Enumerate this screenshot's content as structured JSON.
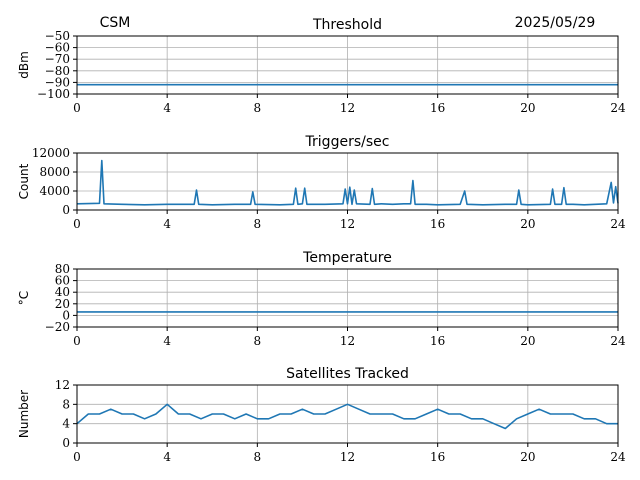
{
  "header": {
    "station": "CSM",
    "date": "2025/05/29"
  },
  "chart_data": [
    {
      "type": "line",
      "title": "Threshold",
      "ylabel": "dBm",
      "xlim": [
        0,
        24
      ],
      "ylim": [
        -100,
        -50
      ],
      "xticks": [
        "0",
        "4",
        "8",
        "12",
        "16",
        "20",
        "24"
      ],
      "yticks": [
        "−50",
        "−60",
        "−70",
        "−80",
        "−90",
        "−100"
      ],
      "grid": true,
      "color": "#1f77b4",
      "series": [
        {
          "x": [
            0,
            2,
            4,
            6,
            8,
            10,
            12,
            14,
            16,
            18,
            20,
            22,
            24
          ],
          "values": [
            -92,
            -92,
            -92,
            -92,
            -92,
            -92,
            -92,
            -92,
            -92,
            -92,
            -92,
            -92,
            -92
          ]
        }
      ]
    },
    {
      "type": "line",
      "title": "Triggers/sec",
      "ylabel": "Count",
      "xlim": [
        0,
        24
      ],
      "ylim": [
        0,
        12000
      ],
      "xticks": [
        "0",
        "4",
        "8",
        "12",
        "16",
        "20",
        "24"
      ],
      "yticks": [
        "12000",
        "8000",
        "4000",
        "0"
      ],
      "grid": true,
      "color": "#1f77b4",
      "series": [
        {
          "x": [
            0,
            1.0,
            1.1,
            1.2,
            2.0,
            3.0,
            4.0,
            5.2,
            5.3,
            5.4,
            6.0,
            7.0,
            7.7,
            7.8,
            7.9,
            9.0,
            9.6,
            9.7,
            9.8,
            10.0,
            10.1,
            10.2,
            11.0,
            11.8,
            11.9,
            12.0,
            12.1,
            12.2,
            12.3,
            12.4,
            13.0,
            13.1,
            13.2,
            13.5,
            14.0,
            14.5,
            14.8,
            14.9,
            15.0,
            15.5,
            16.0,
            17.0,
            17.2,
            17.3,
            18.0,
            19.0,
            19.5,
            19.6,
            19.7,
            20.0,
            21.0,
            21.1,
            21.2,
            21.5,
            21.6,
            21.7,
            22.0,
            22.5,
            23.0,
            23.5,
            23.7,
            23.8,
            23.9,
            24.0
          ],
          "values": [
            1300,
            1400,
            10400,
            1300,
            1200,
            1100,
            1200,
            1200,
            4200,
            1200,
            1100,
            1200,
            1200,
            3800,
            1200,
            1100,
            1200,
            4600,
            1200,
            1300,
            4600,
            1200,
            1200,
            1300,
            4400,
            1300,
            4800,
            1200,
            4200,
            1300,
            1200,
            4500,
            1200,
            1300,
            1200,
            1300,
            1300,
            6200,
            1200,
            1200,
            1100,
            1200,
            4000,
            1200,
            1100,
            1200,
            1200,
            4200,
            1200,
            1100,
            1200,
            4400,
            1200,
            1200,
            4700,
            1200,
            1200,
            1100,
            1200,
            1300,
            5800,
            1500,
            4900,
            1400
          ]
        }
      ]
    },
    {
      "type": "line",
      "title": "Temperature",
      "ylabel": "°C",
      "xlim": [
        0,
        24
      ],
      "ylim": [
        -20,
        80
      ],
      "xticks": [
        "0",
        "4",
        "8",
        "12",
        "16",
        "20",
        "24"
      ],
      "yticks": [
        "80",
        "60",
        "40",
        "20",
        "0",
        "−20"
      ],
      "grid": true,
      "color": "#1f77b4",
      "series": [
        {
          "x": [
            0,
            24
          ],
          "values": [
            6,
            6
          ]
        }
      ]
    },
    {
      "type": "line",
      "title": "Satellites Tracked",
      "ylabel": "Number",
      "xlim": [
        0,
        24
      ],
      "ylim": [
        0,
        12
      ],
      "xticks": [
        "0",
        "4",
        "8",
        "12",
        "16",
        "20",
        "24"
      ],
      "yticks": [
        "12",
        "8",
        "4",
        "0"
      ],
      "grid": true,
      "color": "#1f77b4",
      "series": [
        {
          "x": [
            0,
            0.5,
            1,
            1.5,
            2,
            2.5,
            3,
            3.5,
            4,
            4.5,
            5,
            5.5,
            6,
            6.5,
            7,
            7.5,
            8,
            8.5,
            9,
            9.5,
            10,
            10.5,
            11,
            11.5,
            12,
            12.5,
            13,
            13.5,
            14,
            14.5,
            15,
            15.5,
            16,
            16.5,
            17,
            17.5,
            18,
            18.5,
            19,
            19.5,
            20,
            20.5,
            21,
            21.5,
            22,
            22.5,
            23,
            23.5,
            24
          ],
          "values": [
            4,
            6,
            6,
            7,
            6,
            6,
            5,
            6,
            8,
            6,
            6,
            5,
            6,
            6,
            5,
            6,
            5,
            5,
            6,
            6,
            7,
            6,
            6,
            7,
            8,
            7,
            6,
            6,
            6,
            5,
            5,
            6,
            7,
            6,
            6,
            5,
            5,
            4,
            3,
            5,
            6,
            7,
            6,
            6,
            6,
            5,
            5,
            4,
            4
          ]
        }
      ]
    }
  ]
}
